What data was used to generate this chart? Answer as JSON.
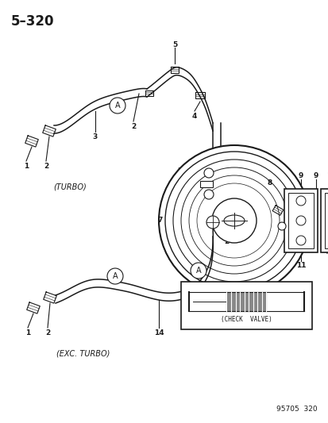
{
  "title": "5–320",
  "background_color": "#ffffff",
  "line_color": "#1a1a1a",
  "fig_width": 4.14,
  "fig_height": 5.33,
  "dpi": 100,
  "footer_text": "95705  320",
  "label_turbo": "(TURBO)",
  "label_exc_turbo": "(EXC. TURBO)",
  "label_check_valve": "(CHECK  VALVE)"
}
